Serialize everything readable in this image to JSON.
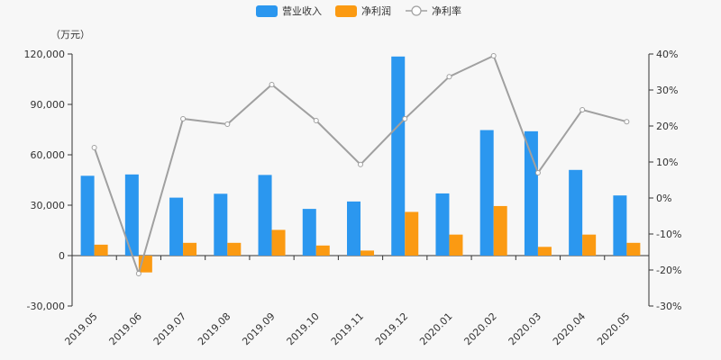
{
  "chart_data": {
    "type": "bar",
    "categories": [
      "2019.05",
      "2019.06",
      "2019.07",
      "2019.08",
      "2019.09",
      "2019.10",
      "2019.11",
      "2019.12",
      "2020.01",
      "2020.02",
      "2020.03",
      "2020.04",
      "2020.05"
    ],
    "series": [
      {
        "name": "营业收入",
        "type": "bar",
        "axis": "left",
        "color": "#2b97ef",
        "values": [
          47500,
          48300,
          34500,
          36800,
          48000,
          27800,
          32200,
          118500,
          37000,
          74700,
          74000,
          51000,
          35800
        ]
      },
      {
        "name": "净利润",
        "type": "bar",
        "axis": "left",
        "color": "#fb9a12",
        "values": [
          6500,
          -10000,
          7600,
          7600,
          15300,
          6000,
          3000,
          26000,
          12500,
          29500,
          5200,
          12500,
          7600
        ]
      },
      {
        "name": "净利率",
        "type": "line",
        "axis": "right",
        "color": "#a0a0a0",
        "unit": "%",
        "values": [
          14,
          -21,
          22,
          20.5,
          31.5,
          21.5,
          9.3,
          22,
          33.7,
          39.5,
          7,
          24.5,
          21.2
        ]
      }
    ],
    "left_axis": {
      "unit_label": "（万元）",
      "ylim": [
        -30000,
        120000
      ],
      "ticks": [
        -30000,
        0,
        30000,
        60000,
        90000,
        120000
      ],
      "tick_labels": [
        "-30,000",
        "0",
        "30,000",
        "60,000",
        "90,000",
        "120,000"
      ]
    },
    "right_axis": {
      "ylim": [
        -30,
        40
      ],
      "ticks": [
        -30,
        -20,
        -10,
        0,
        10,
        20,
        30,
        40
      ],
      "tick_labels": [
        "-30%",
        "-20%",
        "-10%",
        "0%",
        "10%",
        "20%",
        "30%",
        "40%"
      ]
    },
    "legend": {
      "placement": "top-center",
      "items": [
        "营业收入",
        "净利润",
        "净利率"
      ]
    },
    "grid": false
  }
}
